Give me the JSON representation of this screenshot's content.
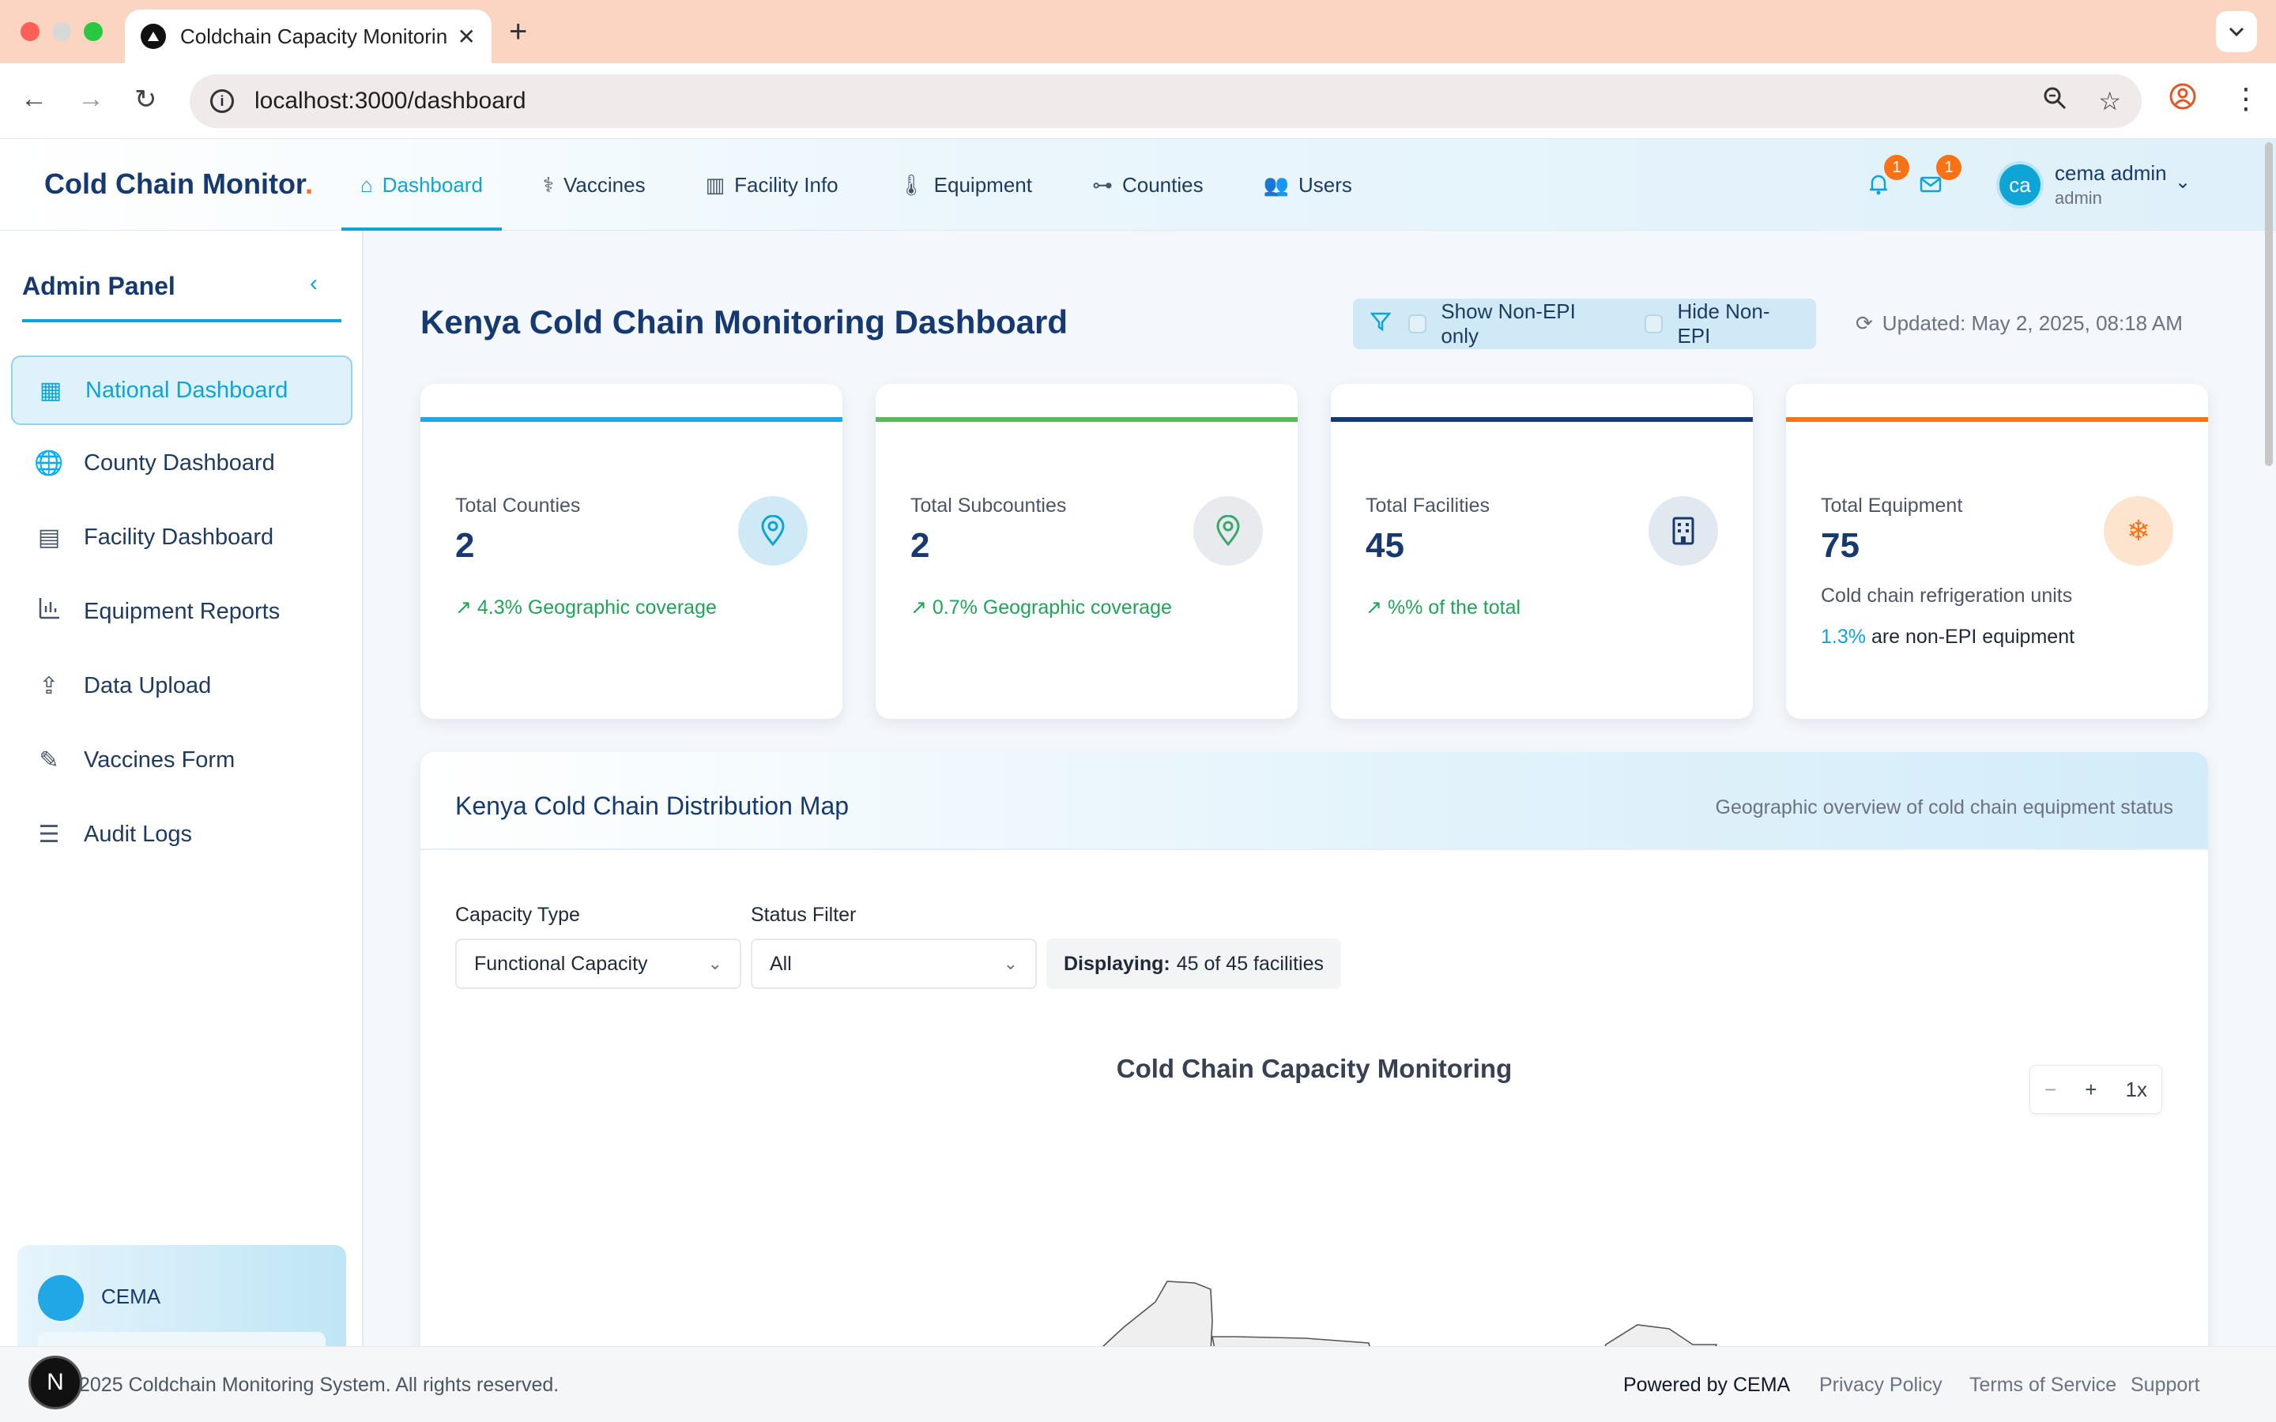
{
  "browser": {
    "tab_title": "Coldchain Capacity Monitorin",
    "url": "localhost:3000/dashboard",
    "new_tab": "+",
    "tab_close": "✕"
  },
  "header": {
    "brand": "Cold Chain Monitor",
    "brand_dot": ".",
    "nav": [
      {
        "label": "Dashboard",
        "icon": "home-icon"
      },
      {
        "label": "Vaccines",
        "icon": "stethoscope-icon"
      },
      {
        "label": "Facility Info",
        "icon": "building-icon"
      },
      {
        "label": "Equipment",
        "icon": "thermometer-icon"
      },
      {
        "label": "Counties",
        "icon": "map-pins-icon"
      },
      {
        "label": "Users",
        "icon": "users-icon"
      }
    ],
    "notifications_count": "1",
    "messages_count": "1",
    "avatar_initials": "ca",
    "user_name": "cema admin",
    "user_role": "admin"
  },
  "sidebar": {
    "title": "Admin Panel",
    "items": [
      {
        "label": "National Dashboard",
        "icon": "grid-icon"
      },
      {
        "label": "County Dashboard",
        "icon": "globe-icon"
      },
      {
        "label": "Facility Dashboard",
        "icon": "facility-icon"
      },
      {
        "label": "Equipment Reports",
        "icon": "bar-chart-icon"
      },
      {
        "label": "Data Upload",
        "icon": "upload-icon"
      },
      {
        "label": "Vaccines Form",
        "icon": "syringe-icon"
      },
      {
        "label": "Audit Logs",
        "icon": "server-icon"
      }
    ],
    "org_name": "CEMA"
  },
  "main": {
    "title": "Kenya Cold Chain Monitoring Dashboard",
    "filter_show_non_epi": "Show Non-EPI only",
    "filter_hide_non_epi": "Hide Non-EPI",
    "updated": "Updated: May 2, 2025, 08:18 AM",
    "stats": [
      {
        "label": "Total Counties",
        "value": "2",
        "sub": "4.3% Geographic coverage",
        "accent": "#22a7e6",
        "icon": "location-pin-icon"
      },
      {
        "label": "Total Subcounties",
        "value": "2",
        "sub": "0.7% Geographic coverage",
        "accent": "#5cb85c",
        "icon": "location-pin-icon"
      },
      {
        "label": "Total Facilities",
        "value": "45",
        "sub": "%% of the total",
        "accent": "#163a70",
        "icon": "building-icon"
      },
      {
        "label": "Total Equipment",
        "value": "75",
        "note": "Cold chain refrigeration units",
        "note_pct": "1.3%",
        "note_rest": "are non-EPI equipment",
        "accent": "#f97316",
        "icon": "snowflake-icon"
      }
    ],
    "map": {
      "title": "Kenya Cold Chain Distribution Map",
      "subtitle": "Geographic overview of cold chain equipment status",
      "capacity_label": "Capacity Type",
      "capacity_value": "Functional Capacity",
      "status_label": "Status Filter",
      "status_value": "All",
      "displaying_label": "Displaying:",
      "displaying_value": "45 of 45 facilities",
      "chart_title": "Cold Chain Capacity Monitoring",
      "zoom_level": "1x",
      "zoom_out": "−",
      "zoom_in": "+"
    }
  },
  "footer": {
    "copyright": "2025 Coldchain Monitoring System. All rights reserved.",
    "powered": "Powered by CEMA",
    "links": [
      "Privacy Policy",
      "Terms of Service",
      "Support"
    ],
    "dev_badge": "N"
  }
}
